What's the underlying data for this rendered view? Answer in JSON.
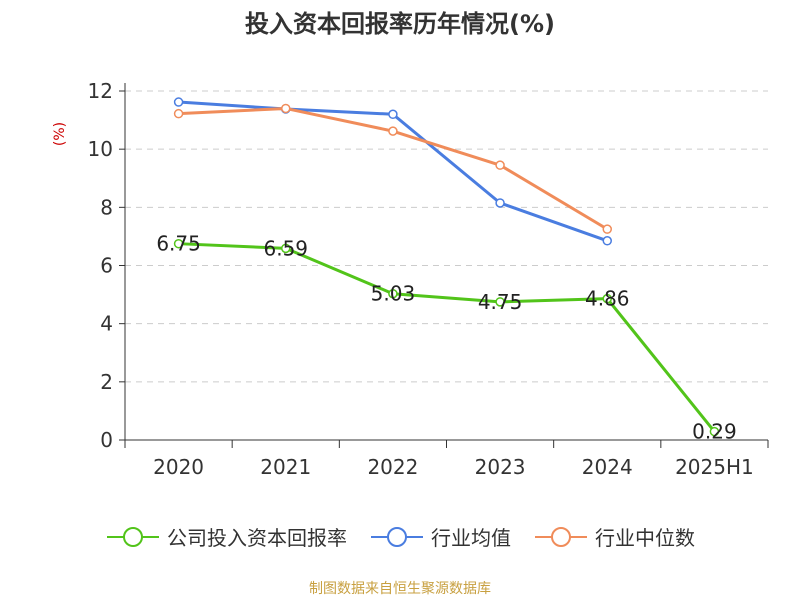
{
  "chart_data": {
    "type": "line",
    "title": "投入资本回报率历年情况(%)",
    "ylabel": "(%)",
    "xlabel": "",
    "categories": [
      "2020",
      "2021",
      "2022",
      "2023",
      "2024",
      "2025H1"
    ],
    "ylim": [
      0,
      12
    ],
    "yticks": [
      0,
      2,
      4,
      6,
      8,
      10,
      12
    ],
    "grid": true,
    "legend_position": "bottom",
    "series": [
      {
        "name": "公司投入资本回报率",
        "color": "#52c41a",
        "values": [
          6.75,
          6.59,
          5.03,
          4.75,
          4.86,
          0.29
        ],
        "labels": [
          "6.75",
          "6.59",
          "5.03",
          "4.75",
          "4.86",
          "0.29"
        ]
      },
      {
        "name": "行业均值",
        "color": "#4a7de0",
        "values": [
          11.62,
          11.38,
          11.2,
          8.15,
          6.85,
          null
        ],
        "labels": []
      },
      {
        "name": "行业中位数",
        "color": "#f08c5a",
        "values": [
          11.22,
          11.4,
          10.62,
          9.45,
          7.25,
          null
        ],
        "labels": []
      }
    ]
  },
  "source": "制图数据来自恒生聚源数据库"
}
